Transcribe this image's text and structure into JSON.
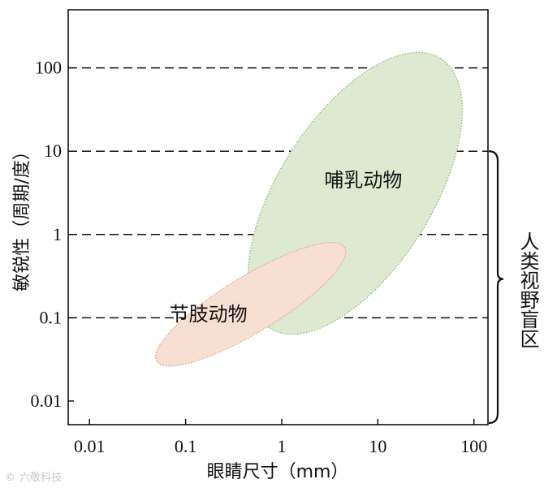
{
  "chart_data": {
    "type": "scatter",
    "x_scale": "log",
    "y_scale": "log",
    "xlabel": "眼睛尺寸（mm）",
    "ylabel": "敏锐性（周期/度）",
    "x_ticks": [
      "0.01",
      "0.1",
      "1",
      "10",
      "100"
    ],
    "y_ticks": [
      "0.01",
      "0.1",
      "1",
      "10",
      "100"
    ],
    "xlim": [
      0.006,
      140
    ],
    "ylim": [
      0.0052,
      500
    ],
    "grid": "dashed horizontal at 0.1, 1, 10, 100",
    "regions": [
      {
        "name": "哺乳动物",
        "shape": "ellipse",
        "major_axis_from": [
          0.75,
          0.075
        ],
        "major_axis_to": [
          45,
          130
        ],
        "minor_axis_ends": [
          [
            1.3,
            9.4
          ],
          [
            32,
            1.2
          ]
        ],
        "fill": "#dde9d1",
        "stroke": "#8fb56e"
      },
      {
        "name": "节肢动物",
        "shape": "ellipse",
        "major_axis_from": [
          0.05,
          0.03
        ],
        "major_axis_to": [
          4.5,
          0.7
        ],
        "minor_axis_ends": [
          [
            0.55,
            0.28
          ],
          [
            0.35,
            0.065
          ]
        ],
        "fill": "#f7e0d2",
        "stroke": "#e8a17e"
      }
    ],
    "annotations": [
      {
        "text": "人类视野盲区",
        "type": "brace",
        "y_from": 10,
        "y_to": 0.0052
      }
    ]
  },
  "watermark": {
    "text": "六敬科技",
    "symbol": "©"
  }
}
